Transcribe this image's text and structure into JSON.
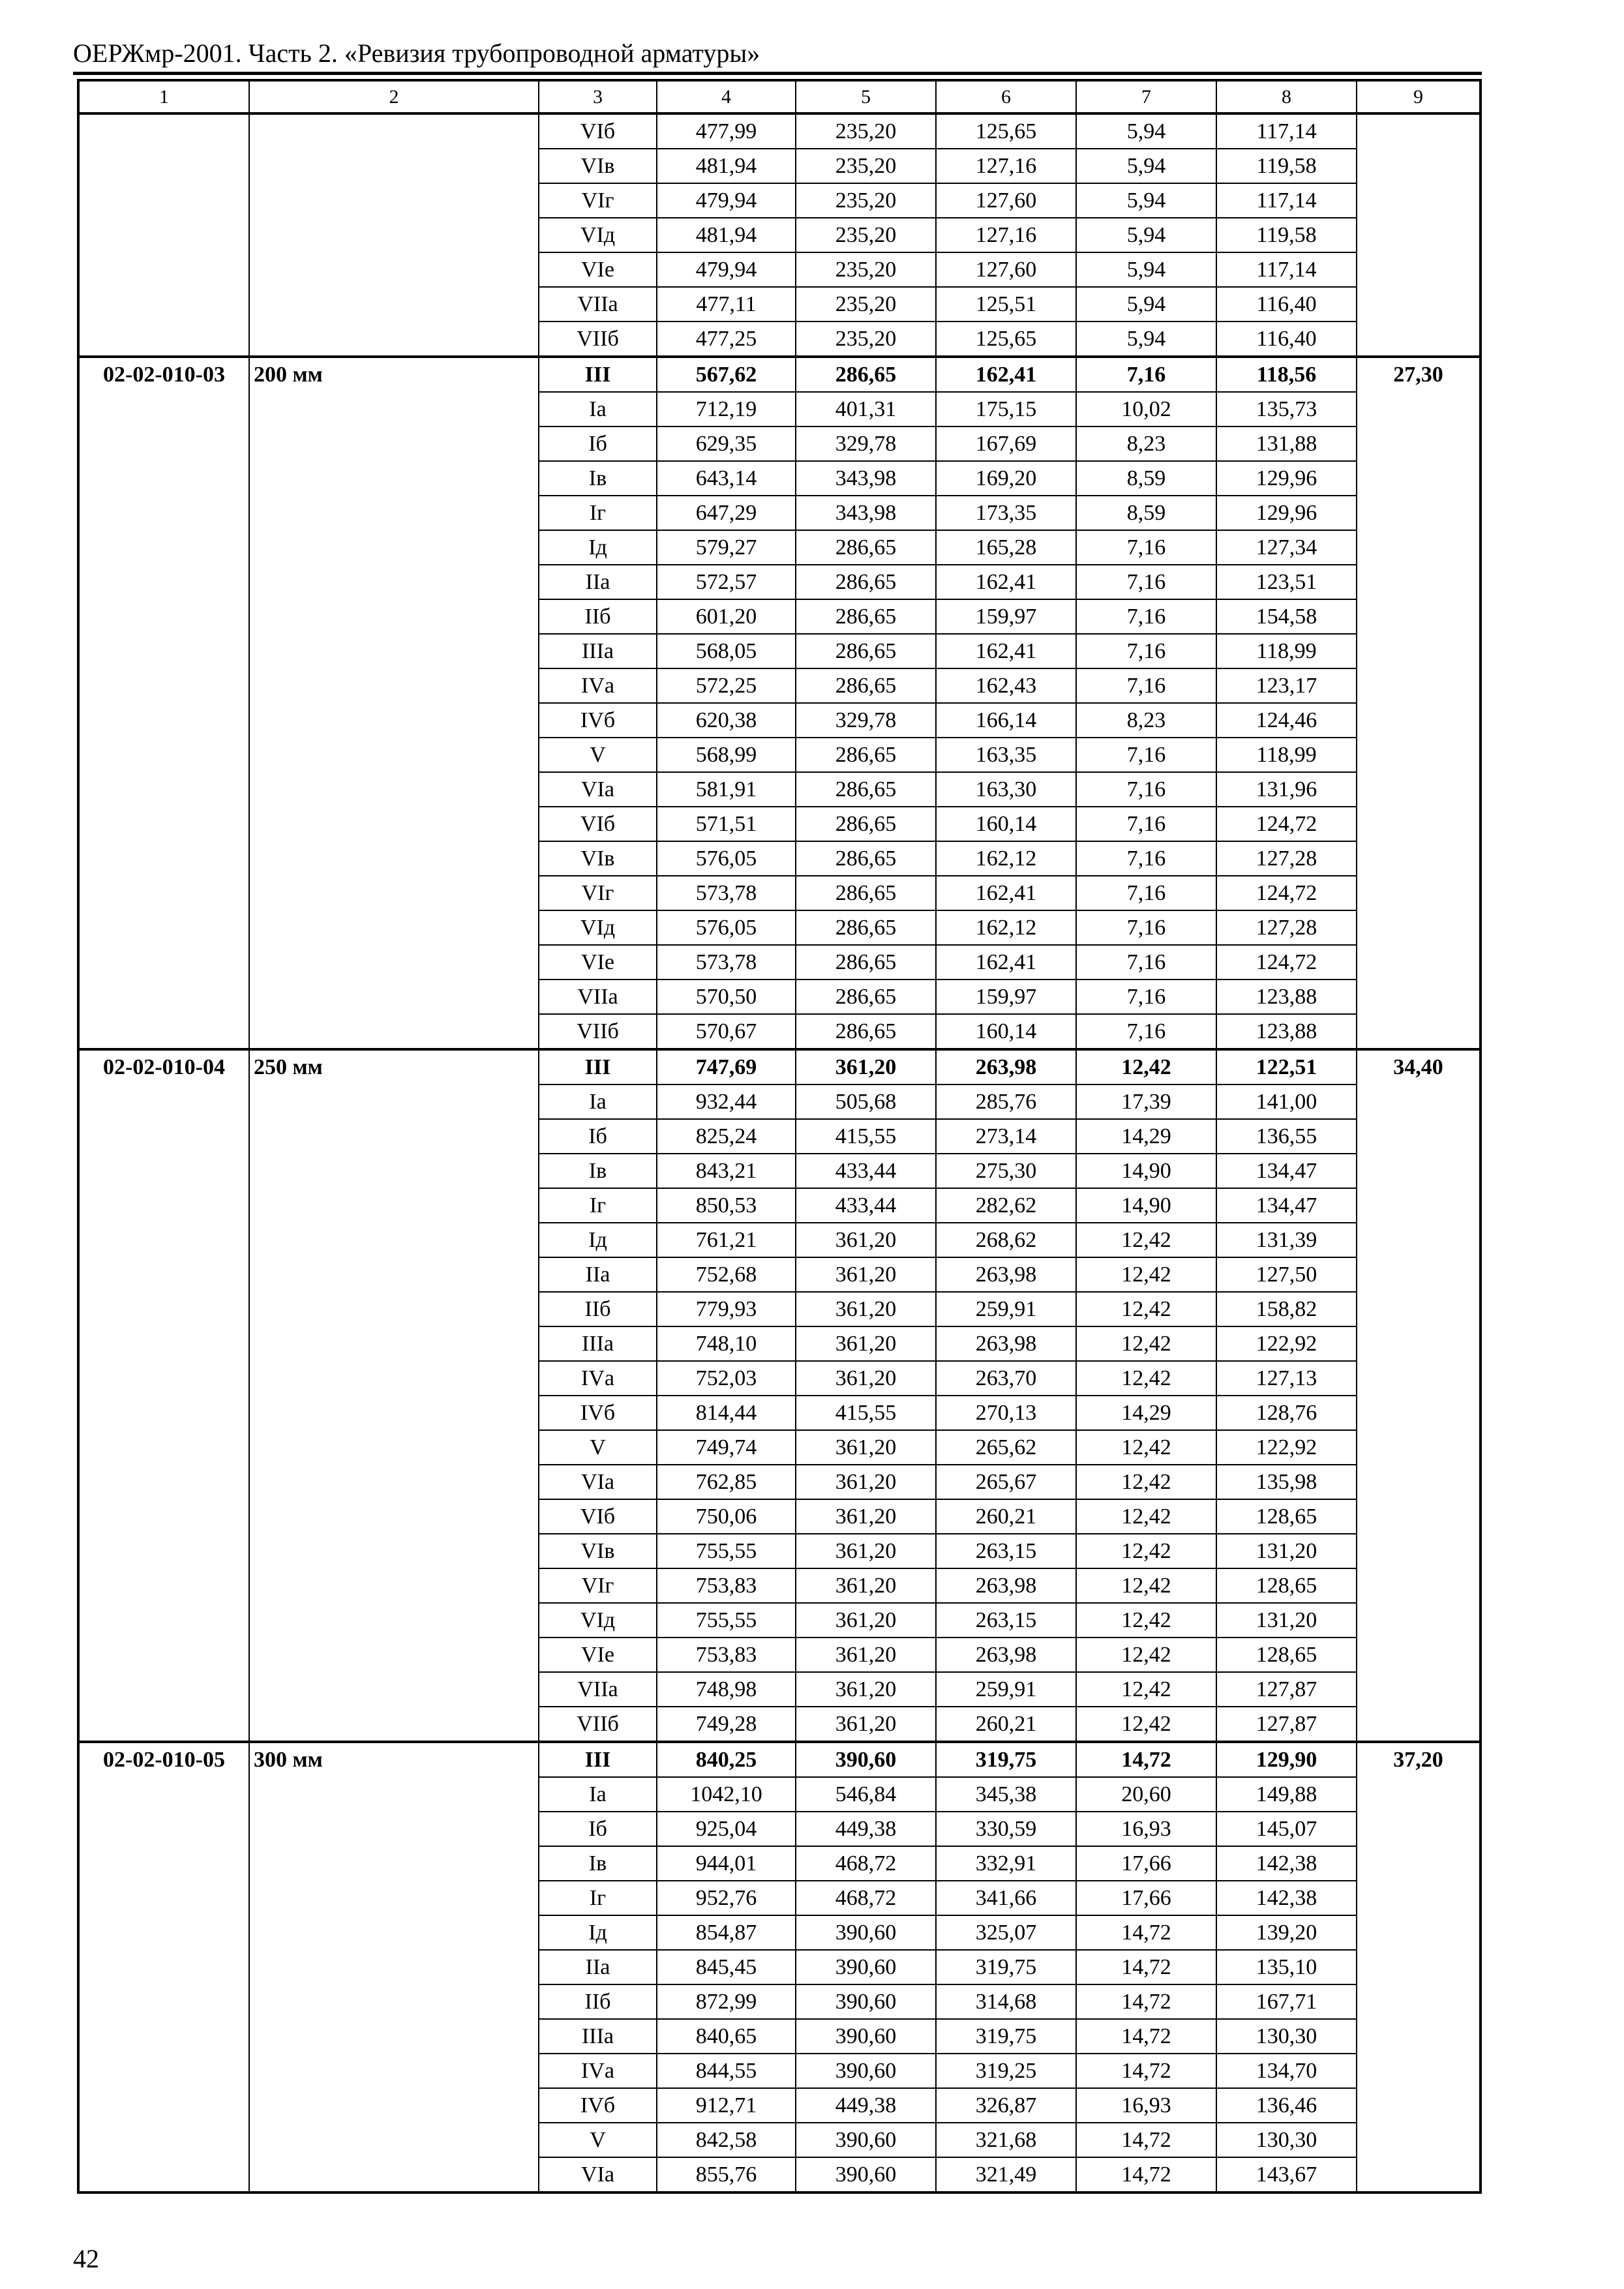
{
  "header": {
    "title": "ОЕРЖмр-2001. Часть 2. «Ревизия трубопроводной арматуры»"
  },
  "table": {
    "columns": [
      "1",
      "2",
      "3",
      "4",
      "5",
      "6",
      "7",
      "8",
      "9"
    ],
    "groups": [
      {
        "code": "",
        "name": "",
        "col9": "",
        "rows": [
          [
            "VIб",
            "477,99",
            "235,20",
            "125,65",
            "5,94",
            "117,14"
          ],
          [
            "VIв",
            "481,94",
            "235,20",
            "127,16",
            "5,94",
            "119,58"
          ],
          [
            "VIг",
            "479,94",
            "235,20",
            "127,60",
            "5,94",
            "117,14"
          ],
          [
            "VIд",
            "481,94",
            "235,20",
            "127,16",
            "5,94",
            "119,58"
          ],
          [
            "VIе",
            "479,94",
            "235,20",
            "127,60",
            "5,94",
            "117,14"
          ],
          [
            "VIIа",
            "477,11",
            "235,20",
            "125,51",
            "5,94",
            "116,40"
          ],
          [
            "VIIб",
            "477,25",
            "235,20",
            "125,65",
            "5,94",
            "116,40"
          ]
        ]
      },
      {
        "code": "02-02-010-03",
        "name": "200 мм",
        "col9": "27,30",
        "rows": [
          [
            "III",
            "567,62",
            "286,65",
            "162,41",
            "7,16",
            "118,56"
          ],
          [
            "Iа",
            "712,19",
            "401,31",
            "175,15",
            "10,02",
            "135,73"
          ],
          [
            "Iб",
            "629,35",
            "329,78",
            "167,69",
            "8,23",
            "131,88"
          ],
          [
            "Iв",
            "643,14",
            "343,98",
            "169,20",
            "8,59",
            "129,96"
          ],
          [
            "Iг",
            "647,29",
            "343,98",
            "173,35",
            "8,59",
            "129,96"
          ],
          [
            "Iд",
            "579,27",
            "286,65",
            "165,28",
            "7,16",
            "127,34"
          ],
          [
            "IIа",
            "572,57",
            "286,65",
            "162,41",
            "7,16",
            "123,51"
          ],
          [
            "IIб",
            "601,20",
            "286,65",
            "159,97",
            "7,16",
            "154,58"
          ],
          [
            "IIIа",
            "568,05",
            "286,65",
            "162,41",
            "7,16",
            "118,99"
          ],
          [
            "IVа",
            "572,25",
            "286,65",
            "162,43",
            "7,16",
            "123,17"
          ],
          [
            "IVб",
            "620,38",
            "329,78",
            "166,14",
            "8,23",
            "124,46"
          ],
          [
            "V",
            "568,99",
            "286,65",
            "163,35",
            "7,16",
            "118,99"
          ],
          [
            "VIа",
            "581,91",
            "286,65",
            "163,30",
            "7,16",
            "131,96"
          ],
          [
            "VIб",
            "571,51",
            "286,65",
            "160,14",
            "7,16",
            "124,72"
          ],
          [
            "VIв",
            "576,05",
            "286,65",
            "162,12",
            "7,16",
            "127,28"
          ],
          [
            "VIг",
            "573,78",
            "286,65",
            "162,41",
            "7,16",
            "124,72"
          ],
          [
            "VIд",
            "576,05",
            "286,65",
            "162,12",
            "7,16",
            "127,28"
          ],
          [
            "VIе",
            "573,78",
            "286,65",
            "162,41",
            "7,16",
            "124,72"
          ],
          [
            "VIIа",
            "570,50",
            "286,65",
            "159,97",
            "7,16",
            "123,88"
          ],
          [
            "VIIб",
            "570,67",
            "286,65",
            "160,14",
            "7,16",
            "123,88"
          ]
        ]
      },
      {
        "code": "02-02-010-04",
        "name": "250 мм",
        "col9": "34,40",
        "rows": [
          [
            "III",
            "747,69",
            "361,20",
            "263,98",
            "12,42",
            "122,51"
          ],
          [
            "Iа",
            "932,44",
            "505,68",
            "285,76",
            "17,39",
            "141,00"
          ],
          [
            "Iб",
            "825,24",
            "415,55",
            "273,14",
            "14,29",
            "136,55"
          ],
          [
            "Iв",
            "843,21",
            "433,44",
            "275,30",
            "14,90",
            "134,47"
          ],
          [
            "Iг",
            "850,53",
            "433,44",
            "282,62",
            "14,90",
            "134,47"
          ],
          [
            "Iд",
            "761,21",
            "361,20",
            "268,62",
            "12,42",
            "131,39"
          ],
          [
            "IIа",
            "752,68",
            "361,20",
            "263,98",
            "12,42",
            "127,50"
          ],
          [
            "IIб",
            "779,93",
            "361,20",
            "259,91",
            "12,42",
            "158,82"
          ],
          [
            "IIIа",
            "748,10",
            "361,20",
            "263,98",
            "12,42",
            "122,92"
          ],
          [
            "IVа",
            "752,03",
            "361,20",
            "263,70",
            "12,42",
            "127,13"
          ],
          [
            "IVб",
            "814,44",
            "415,55",
            "270,13",
            "14,29",
            "128,76"
          ],
          [
            "V",
            "749,74",
            "361,20",
            "265,62",
            "12,42",
            "122,92"
          ],
          [
            "VIа",
            "762,85",
            "361,20",
            "265,67",
            "12,42",
            "135,98"
          ],
          [
            "VIб",
            "750,06",
            "361,20",
            "260,21",
            "12,42",
            "128,65"
          ],
          [
            "VIв",
            "755,55",
            "361,20",
            "263,15",
            "12,42",
            "131,20"
          ],
          [
            "VIг",
            "753,83",
            "361,20",
            "263,98",
            "12,42",
            "128,65"
          ],
          [
            "VIд",
            "755,55",
            "361,20",
            "263,15",
            "12,42",
            "131,20"
          ],
          [
            "VIе",
            "753,83",
            "361,20",
            "263,98",
            "12,42",
            "128,65"
          ],
          [
            "VIIа",
            "748,98",
            "361,20",
            "259,91",
            "12,42",
            "127,87"
          ],
          [
            "VIIб",
            "749,28",
            "361,20",
            "260,21",
            "12,42",
            "127,87"
          ]
        ]
      },
      {
        "code": "02-02-010-05",
        "name": "300 мм",
        "col9": "37,20",
        "rows": [
          [
            "III",
            "840,25",
            "390,60",
            "319,75",
            "14,72",
            "129,90"
          ],
          [
            "Iа",
            "1042,10",
            "546,84",
            "345,38",
            "20,60",
            "149,88"
          ],
          [
            "Iб",
            "925,04",
            "449,38",
            "330,59",
            "16,93",
            "145,07"
          ],
          [
            "Iв",
            "944,01",
            "468,72",
            "332,91",
            "17,66",
            "142,38"
          ],
          [
            "Iг",
            "952,76",
            "468,72",
            "341,66",
            "17,66",
            "142,38"
          ],
          [
            "Iд",
            "854,87",
            "390,60",
            "325,07",
            "14,72",
            "139,20"
          ],
          [
            "IIа",
            "845,45",
            "390,60",
            "319,75",
            "14,72",
            "135,10"
          ],
          [
            "IIб",
            "872,99",
            "390,60",
            "314,68",
            "14,72",
            "167,71"
          ],
          [
            "IIIа",
            "840,65",
            "390,60",
            "319,75",
            "14,72",
            "130,30"
          ],
          [
            "IVа",
            "844,55",
            "390,60",
            "319,25",
            "14,72",
            "134,70"
          ],
          [
            "IVб",
            "912,71",
            "449,38",
            "326,87",
            "16,93",
            "136,46"
          ],
          [
            "V",
            "842,58",
            "390,60",
            "321,68",
            "14,72",
            "130,30"
          ],
          [
            "VIа",
            "855,76",
            "390,60",
            "321,49",
            "14,72",
            "143,67"
          ]
        ]
      }
    ]
  },
  "footer": {
    "page_number": "42"
  }
}
